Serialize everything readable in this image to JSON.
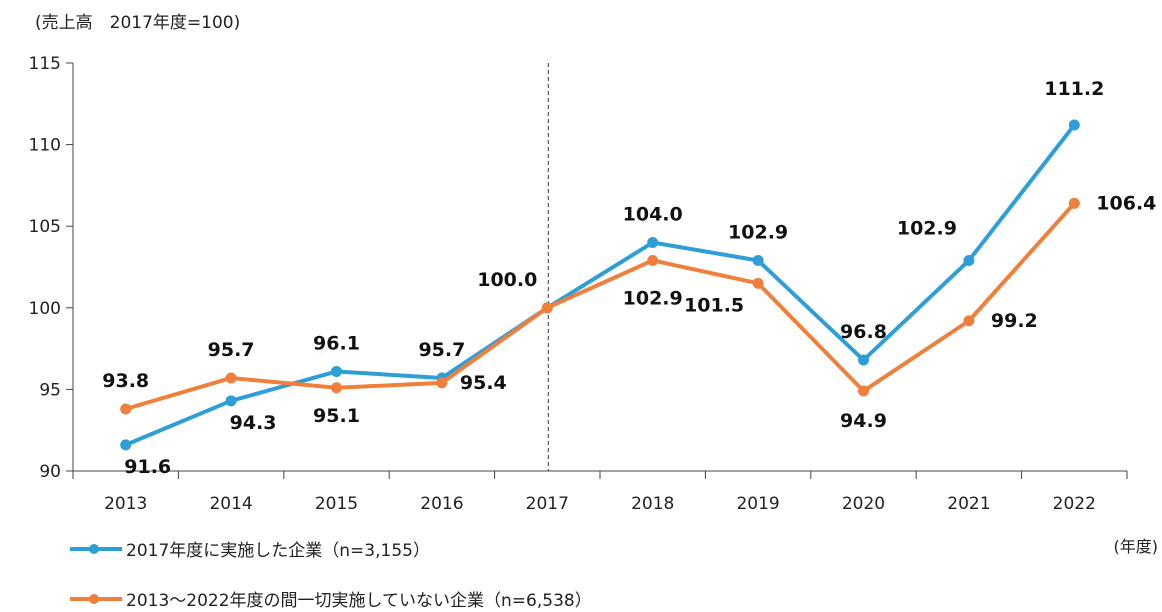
{
  "chart_data": {
    "type": "line",
    "unit_note": "(売上高　2017年度=100)",
    "xlabel": "(年度)",
    "categories": [
      "2013",
      "2014",
      "2015",
      "2016",
      "2017",
      "2018",
      "2019",
      "2020",
      "2021",
      "2022"
    ],
    "ylim": [
      90,
      115
    ],
    "yticks": [
      "90",
      "95",
      "100",
      "105",
      "110",
      "115"
    ],
    "reference_line": "2017",
    "grid": false,
    "legend_position": "bottom",
    "series": [
      {
        "name": "2017年度に実施した企業（n=3,155）",
        "color": "#2E9ED6",
        "values": [
          91.6,
          94.3,
          96.1,
          95.7,
          100.0,
          104.0,
          102.9,
          96.8,
          102.9,
          111.2
        ],
        "labels": [
          "91.6",
          "94.3",
          "96.1",
          "95.7",
          "100.0",
          "104.0",
          "102.9",
          "96.8",
          "102.9",
          "111.2"
        ]
      },
      {
        "name": "2013～2022年度の間一切実施していない企業（n=6,538）",
        "color": "#F07F3C",
        "values": [
          93.8,
          95.7,
          95.1,
          95.4,
          100.0,
          102.9,
          101.5,
          94.9,
          99.2,
          106.4
        ],
        "labels": [
          "93.8",
          "95.7",
          "95.1",
          "95.4",
          "",
          "102.9",
          "101.5",
          "94.9",
          "99.2",
          "106.4"
        ]
      }
    ]
  }
}
